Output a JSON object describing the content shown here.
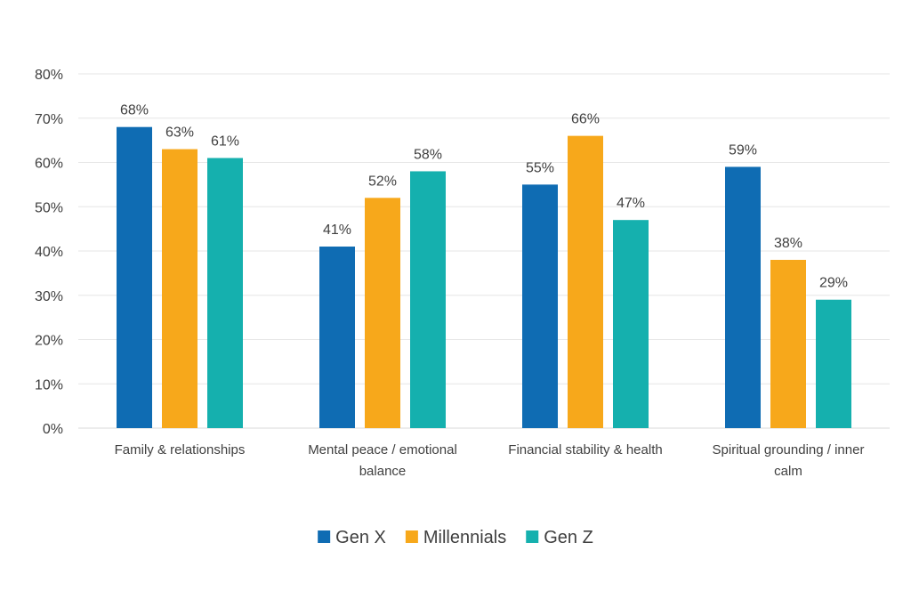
{
  "chart_data": {
    "type": "bar",
    "title": "",
    "xlabel": "",
    "ylabel": "",
    "ylim": [
      0,
      80
    ],
    "yticks": [
      0,
      10,
      20,
      30,
      40,
      50,
      60,
      70,
      80
    ],
    "ytick_format": "%",
    "grid": true,
    "legend_position": "bottom",
    "categories": [
      [
        "Family & relationships"
      ],
      [
        "Mental peace / emotional",
        "balance"
      ],
      [
        "Financial stability & health"
      ],
      [
        "Spiritual grounding / inner",
        "calm"
      ]
    ],
    "series": [
      {
        "name": "Gen X",
        "color": "#0f6cb3",
        "values": [
          68,
          41,
          55,
          59
        ]
      },
      {
        "name": "Millennials",
        "color": "#f7a81b",
        "values": [
          63,
          52,
          66,
          38
        ]
      },
      {
        "name": "Gen Z",
        "color": "#15b0ae",
        "values": [
          61,
          58,
          47,
          29
        ]
      }
    ]
  }
}
